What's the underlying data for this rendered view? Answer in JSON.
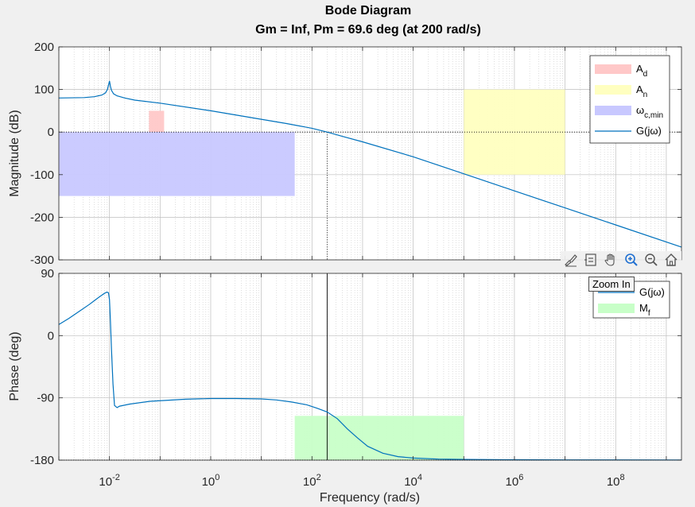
{
  "title": "Bode Diagram",
  "subtitle": "Gm = Inf,  Pm = 69.6 deg (at 200 rad/s)",
  "xlabel": "Frequency  (rad/s)",
  "toolbar": {
    "icons": [
      "brush-icon",
      "datatip-icon",
      "pan-icon",
      "zoom-in-icon",
      "zoom-out-icon",
      "home-icon"
    ],
    "tooltip": "Zoom In"
  },
  "chart_data": [
    {
      "type": "line",
      "name": "magnitude",
      "ylabel": "Magnitude (dB)",
      "xscale": "log",
      "xlim_exp": [
        -3.0,
        9.3
      ],
      "ylim": [
        -300,
        200
      ],
      "yticks": [
        "200",
        "100",
        "0",
        "-100",
        "-200",
        "-300"
      ],
      "xticks": [
        {
          "base": "10",
          "exp": "-2"
        },
        {
          "base": "10",
          "exp": "0"
        },
        {
          "base": "10",
          "exp": "2"
        },
        {
          "base": "10",
          "exp": "4"
        },
        {
          "base": "10",
          "exp": "6"
        },
        {
          "base": "10",
          "exp": "8"
        }
      ],
      "grid": true,
      "legend": {
        "position": "top-right",
        "entries": [
          {
            "main": "A",
            "sub": "d",
            "color": "#ffc8c8",
            "kind": "patch"
          },
          {
            "main": "A",
            "sub": "n",
            "color": "#ffffc0",
            "kind": "patch"
          },
          {
            "main": "ω",
            "sub": "c,min",
            "color": "#c8c8ff",
            "kind": "patch"
          },
          {
            "main": "G(jω)",
            "sub": "",
            "color": "#0072bd",
            "kind": "line"
          }
        ]
      },
      "regions": [
        {
          "name": "A_d",
          "x_exp": [
            -1.22,
            -0.92
          ],
          "y": [
            0,
            50
          ],
          "color": "#ffc8c8"
        },
        {
          "name": "A_n",
          "x_exp": [
            5.0,
            7.0
          ],
          "y": [
            -100,
            100
          ],
          "color": "#ffffc0"
        },
        {
          "name": "omega_c_min",
          "x_exp": [
            -3.0,
            1.66
          ],
          "y": [
            -150,
            0
          ],
          "color": "#c8c8ff"
        }
      ],
      "series": {
        "name": "G(jω)",
        "color": "#0072bd",
        "x_exp": [
          -3.0,
          -2.5,
          -2.3,
          -2.15,
          -2.08,
          -2.04,
          -2.02,
          -2.0,
          -1.98,
          -1.96,
          -1.92,
          -1.85,
          -1.7,
          -1.5,
          -1.0,
          0.0,
          1.0,
          1.5,
          2.0,
          2.3,
          2.6,
          3.0,
          4.0,
          5.0,
          6.0,
          7.0,
          8.0,
          9.3
        ],
        "y": [
          80,
          81,
          83,
          87,
          92,
          100,
          110,
          120,
          107,
          98,
          90,
          85,
          80,
          75,
          68,
          50,
          30,
          20,
          9,
          0,
          -10,
          -23,
          -58,
          -98,
          -138,
          -178,
          -218,
          -270
        ]
      },
      "crossover_x_exp": 2.3
    },
    {
      "type": "line",
      "name": "phase",
      "ylabel": "Phase (deg)",
      "xscale": "log",
      "xlim_exp": [
        -3.0,
        9.3
      ],
      "ylim": [
        -180,
        90
      ],
      "yticks": [
        "90",
        "0",
        "-90",
        "-180"
      ],
      "grid": true,
      "legend": {
        "position": "top-right",
        "entries": [
          {
            "main": "G(jω)",
            "sub": "",
            "color": "#0072bd",
            "kind": "line"
          },
          {
            "main": "M",
            "sub": "f",
            "color": "#c8ffc8",
            "kind": "patch"
          }
        ]
      },
      "regions": [
        {
          "name": "M_f",
          "x_exp": [
            1.66,
            5.0
          ],
          "y": [
            -180,
            -116
          ],
          "color": "#c8ffc8"
        }
      ],
      "series": {
        "name": "G(jω)",
        "color": "#0072bd",
        "x_exp": [
          -3.0,
          -2.8,
          -2.6,
          -2.4,
          -2.2,
          -2.1,
          -2.05,
          -2.02,
          -2.0,
          -1.98,
          -1.96,
          -1.93,
          -1.9,
          -1.85,
          -1.8,
          -1.6,
          -1.2,
          -0.5,
          0.0,
          0.5,
          1.0,
          1.3,
          1.6,
          1.9,
          2.1,
          2.3,
          2.5,
          2.7,
          2.9,
          3.1,
          3.4,
          3.7,
          4.0,
          4.5,
          5.0,
          6.0,
          7.0,
          8.0,
          9.3
        ],
        "y": [
          16,
          25,
          35,
          45,
          56,
          61,
          63,
          62,
          52,
          20,
          -20,
          -70,
          -101,
          -104,
          -102,
          -99,
          -95,
          -92,
          -91,
          -91,
          -91.5,
          -93,
          -96,
          -100,
          -105,
          -110.4,
          -120,
          -135,
          -148,
          -160,
          -170,
          -175,
          -177,
          -178.5,
          -179,
          -179.4,
          -179.6,
          -179.7,
          -179.8
        ]
      },
      "crossover_x_exp": 2.3
    }
  ]
}
